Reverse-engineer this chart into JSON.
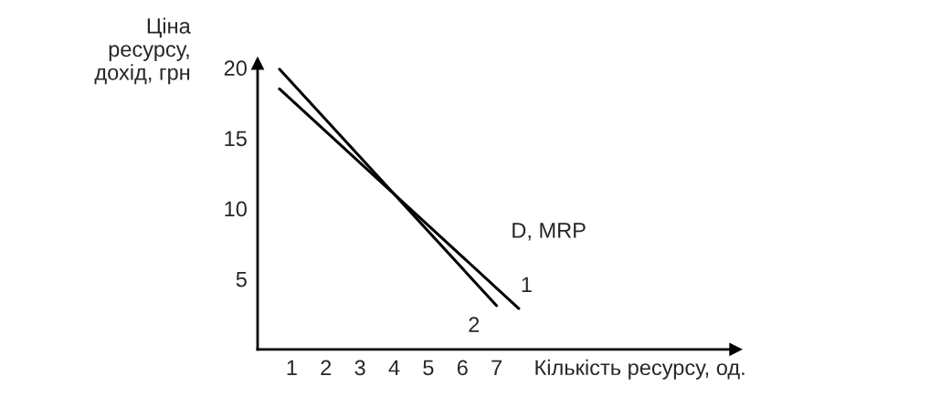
{
  "chart_data": {
    "type": "line",
    "xlabel": "Кількість ресурсу, од.",
    "ylabel": "Ціна\nресурсу,\nдохід, грн",
    "series": [
      {
        "color": "#000000",
        "x": [
          0.64,
          7.65
        ],
        "values": [
          18.5,
          2.9
        ]
      },
      {
        "color": "#000000",
        "x": [
          0.64,
          7.0
        ],
        "values": [
          19.9,
          3.1
        ]
      }
    ],
    "annotations": [
      "D, MRP",
      "1",
      "2"
    ],
    "xlim": [
      0,
      14
    ],
    "ylim": [
      0,
      20.3
    ],
    "xticks": [
      1,
      2,
      3,
      4,
      5,
      6,
      7
    ],
    "yticks": [
      5,
      10,
      15,
      20
    ],
    "grid": false,
    "legend": false,
    "marker": "none",
    "line_style": "solid"
  }
}
